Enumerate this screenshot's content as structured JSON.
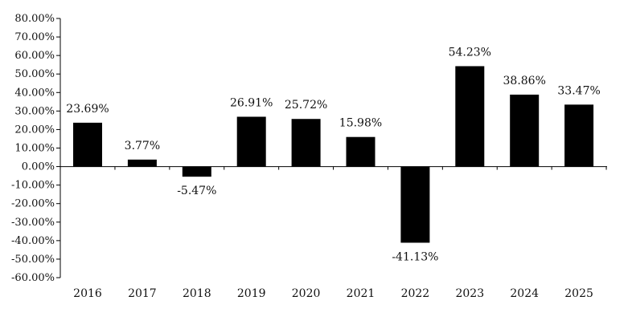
{
  "chart_data": {
    "type": "bar",
    "categories": [
      "2016",
      "2017",
      "2018",
      "2019",
      "2020",
      "2021",
      "2022",
      "2023",
      "2024",
      "2025"
    ],
    "values": [
      23.69,
      3.77,
      -5.47,
      26.91,
      25.72,
      15.98,
      -41.13,
      54.23,
      38.86,
      33.47
    ],
    "data_labels": [
      "23.69%",
      "3.77%",
      "-5.47%",
      "26.91%",
      "25.72%",
      "15.98%",
      "-41.13%",
      "54.23%",
      "38.86%",
      "33.47%"
    ],
    "yticks": [
      80,
      70,
      60,
      50,
      40,
      30,
      20,
      10,
      0,
      -10,
      -20,
      -30,
      -40,
      -50,
      -60
    ],
    "ytick_labels": [
      "80.00%",
      "70.00%",
      "60.00%",
      "50.00%",
      "40.00%",
      "30.00%",
      "20.00%",
      "10.00%",
      "0.00%",
      "-10.00%",
      "-20.00%",
      "-30.00%",
      "-40.00%",
      "-50.00%",
      "-60.00%"
    ],
    "ylim": [
      -60,
      80
    ],
    "bar_color": "#000000",
    "grid": false,
    "legend": "none",
    "title": "",
    "xlabel": "",
    "ylabel": ""
  }
}
